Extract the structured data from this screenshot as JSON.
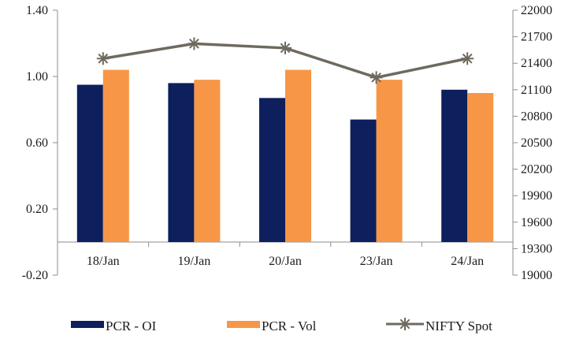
{
  "chart_data": {
    "type": "bar",
    "categories": [
      "18/Jan",
      "19/Jan",
      "20/Jan",
      "23/Jan",
      "24/Jan"
    ],
    "series": [
      {
        "name": "PCR - OI",
        "kind": "bar",
        "axis": "left",
        "color": "#0d1f5c",
        "values": [
          0.95,
          0.96,
          0.87,
          0.74,
          0.92
        ]
      },
      {
        "name": "PCR - Vol",
        "kind": "bar",
        "axis": "left",
        "color": "#f79646",
        "values": [
          1.04,
          0.98,
          1.04,
          0.98,
          0.9
        ]
      },
      {
        "name": "NIFTY Spot",
        "kind": "line",
        "axis": "right",
        "color": "#6e6a5e",
        "marker": "star",
        "values": [
          21453,
          21622,
          21572,
          21238,
          21453
        ]
      }
    ],
    "y_left": {
      "min": -0.2,
      "max": 1.4,
      "ticks": [
        -0.2,
        0.2,
        0.6,
        1.0,
        1.4
      ],
      "tick_labels": [
        "-0.20",
        "0.20",
        "0.60",
        "1.00",
        "1.40"
      ]
    },
    "y_right": {
      "min": 19000,
      "max": 22000,
      "ticks": [
        19000,
        19300,
        19600,
        19900,
        20200,
        20500,
        20800,
        21100,
        21400,
        21700,
        22000
      ],
      "tick_labels": [
        "19000",
        "19300",
        "19600",
        "19900",
        "20200",
        "20500",
        "20800",
        "21100",
        "21400",
        "21700",
        "22000"
      ]
    },
    "category_axis_at": 0,
    "title": "",
    "xlabel": "",
    "ylabel": "",
    "grid": false,
    "legend": "bottom",
    "legend_entries": [
      "PCR - OI",
      "PCR - Vol",
      "NIFTY Spot"
    ]
  }
}
